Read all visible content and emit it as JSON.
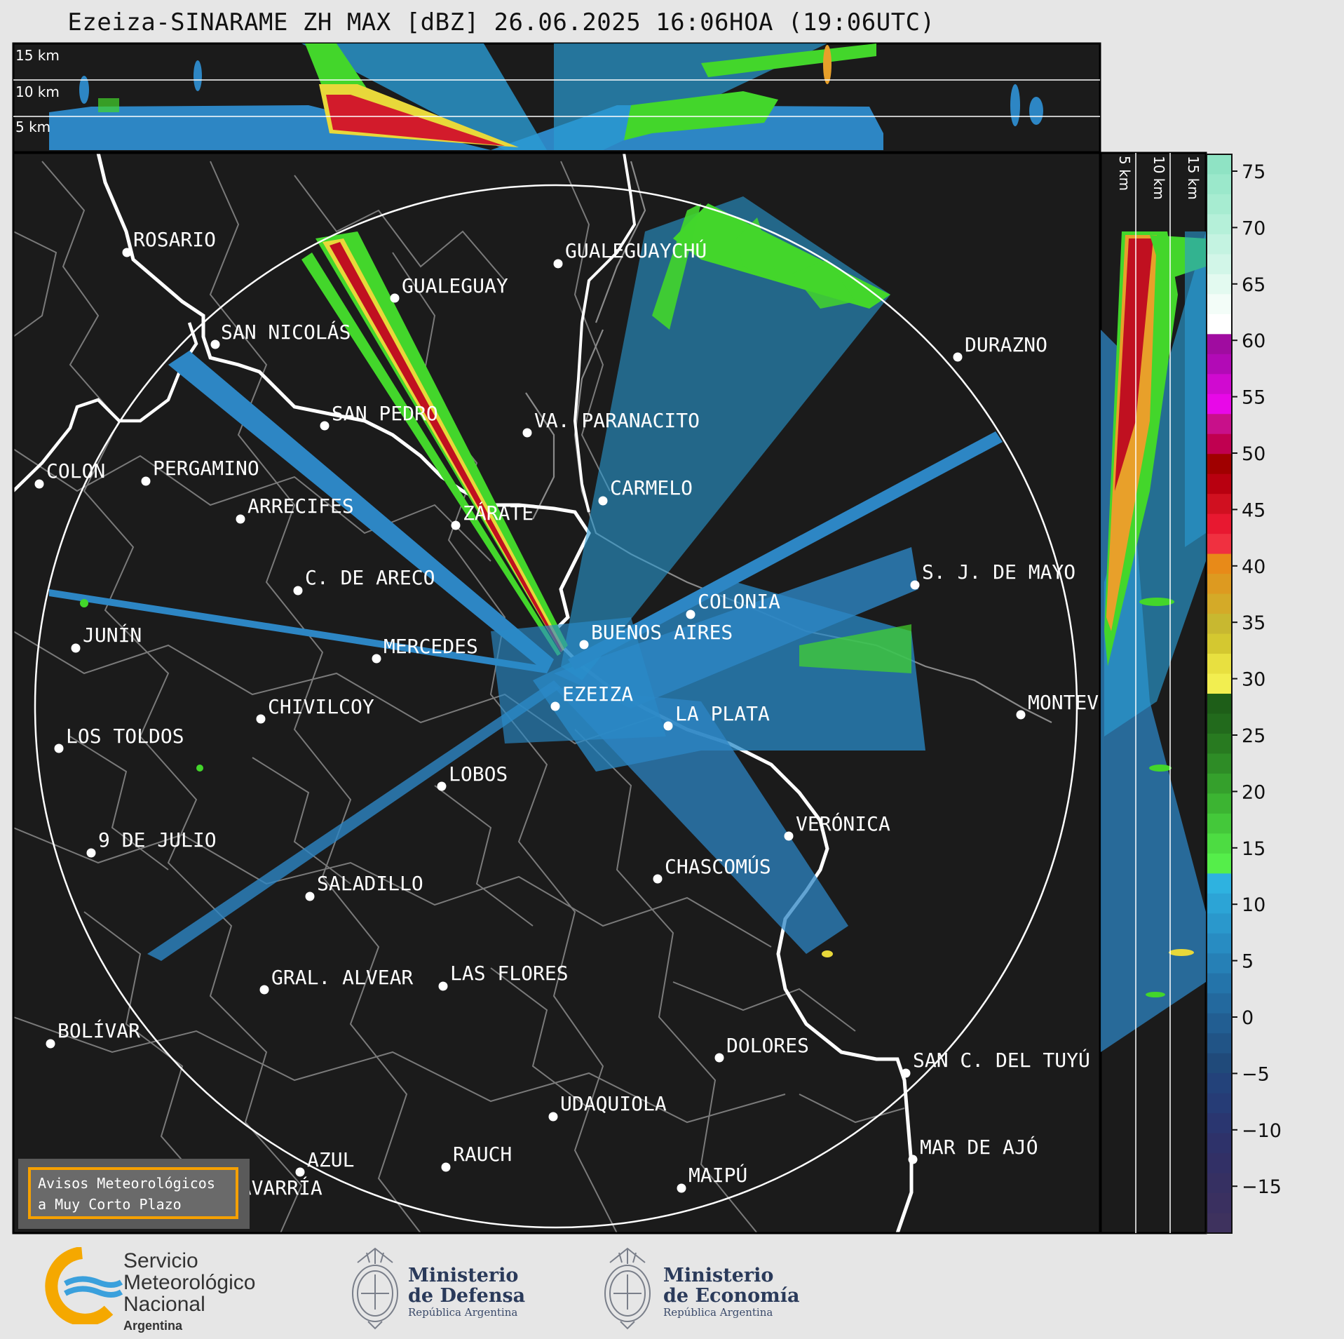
{
  "title": "Ezeiza-SINARAME ZH MAX [dBZ] 26.06.2025 16:06HOA (19:06UTC)",
  "top_panel_labels": [
    "15 km",
    "10 km",
    "5 km"
  ],
  "side_panel_labels": [
    "5 km",
    "10 km",
    "15 km"
  ],
  "colorbar": {
    "ticks": [
      "75",
      "70",
      "65",
      "60",
      "55",
      "50",
      "45",
      "40",
      "35",
      "30",
      "25",
      "20",
      "15",
      "10",
      "5",
      "0",
      "−5",
      "−10",
      "−15"
    ]
  },
  "cities": [
    {
      "name": "ROSARIO"
    },
    {
      "name": "GUALEGUAYCHÚ"
    },
    {
      "name": "GUALEGUAY"
    },
    {
      "name": "SAN NICOLÁS"
    },
    {
      "name": "DURAZNO"
    },
    {
      "name": "SAN PEDRO"
    },
    {
      "name": "VA. PARANACITO"
    },
    {
      "name": "COLON"
    },
    {
      "name": "PERGAMINO"
    },
    {
      "name": "CARMELO"
    },
    {
      "name": "ARRECIFES"
    },
    {
      "name": "ZÁRATE"
    },
    {
      "name": "C. DE ARECO"
    },
    {
      "name": "S. J. DE MAYO"
    },
    {
      "name": "COLONIA"
    },
    {
      "name": "JUNÍN"
    },
    {
      "name": "BUENOS AIRES"
    },
    {
      "name": "MERCEDES"
    },
    {
      "name": "EZEIZA"
    },
    {
      "name": "MONTEV"
    },
    {
      "name": "CHIVILCOY"
    },
    {
      "name": "LA PLATA"
    },
    {
      "name": "LOS TOLDOS"
    },
    {
      "name": "LOBOS"
    },
    {
      "name": "VERÓNICA"
    },
    {
      "name": "9 DE JULIO"
    },
    {
      "name": "CHASCOMÚS"
    },
    {
      "name": "SALADILLO"
    },
    {
      "name": "GRAL. ALVEAR"
    },
    {
      "name": "LAS FLORES"
    },
    {
      "name": "BOLÍVAR"
    },
    {
      "name": "DOLORES"
    },
    {
      "name": "SAN C. DEL TUYÚ"
    },
    {
      "name": "UDAQUIOLA"
    },
    {
      "name": "MAR DE AJÓ"
    },
    {
      "name": "AZUL"
    },
    {
      "name": "RAUCH"
    },
    {
      "name": "MAIPÚ"
    },
    {
      "name": "OLAVARRÍA"
    }
  ],
  "avisos": {
    "line1": "Avisos Meteorológicos",
    "line2": "a Muy Corto Plazo"
  },
  "logos": {
    "smn": {
      "line1": "Servicio",
      "line2": "Meteorológico",
      "line3": "Nacional",
      "line4": "Argentina"
    },
    "defensa": {
      "line1": "Ministerio",
      "line2": "de Defensa",
      "line3": "República Argentina"
    },
    "economia": {
      "line1": "Ministerio",
      "line2": "de Economía",
      "line3": "República Argentina"
    }
  }
}
